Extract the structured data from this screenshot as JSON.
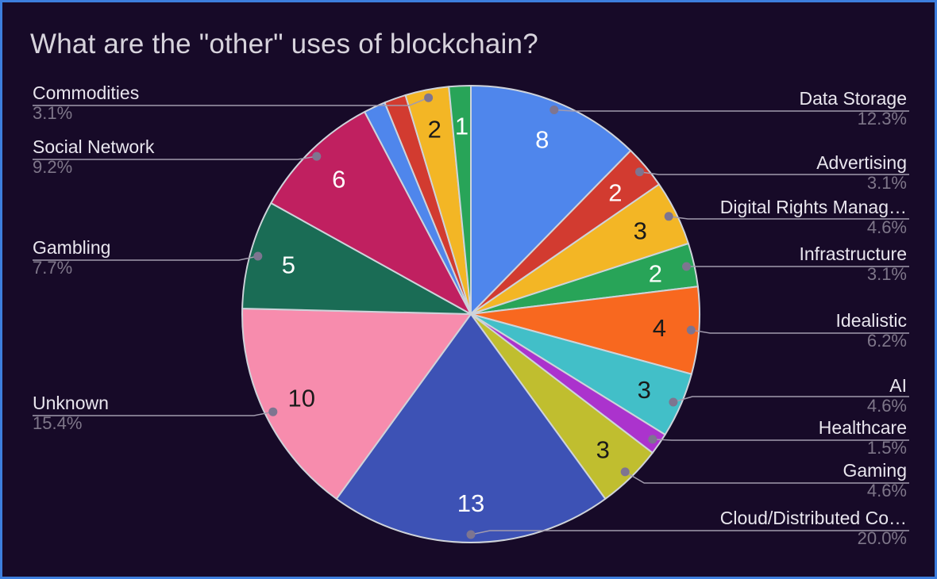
{
  "chart_data": {
    "type": "pie",
    "title": "What are the \"other\" uses of blockchain?",
    "legend_position": "labeled-callouts",
    "start_angle_deg": 0,
    "direction": "clockwise",
    "slices": [
      {
        "label": "Data Storage",
        "value": 8,
        "pct": "12.3%",
        "color": "#4f86ec",
        "value_label": "8",
        "value_label_color": "#ffffff"
      },
      {
        "label": "Advertising",
        "value": 2,
        "pct": "3.1%",
        "color": "#d23b30",
        "value_label": "2",
        "value_label_color": "#ffffff"
      },
      {
        "label": "Digital Rights Manag…",
        "value": 3,
        "pct": "4.6%",
        "color": "#f3b625",
        "value_label": "3",
        "value_label_color": "#1a1a1a"
      },
      {
        "label": "Infrastructure",
        "value": 2,
        "pct": "3.1%",
        "color": "#28a458",
        "value_label": "2",
        "value_label_color": "#ffffff"
      },
      {
        "label": "Idealistic",
        "value": 4,
        "pct": "6.2%",
        "color": "#f8681f",
        "value_label": "4",
        "value_label_color": "#1a1a1a"
      },
      {
        "label": "AI",
        "value": 3,
        "pct": "4.6%",
        "color": "#42bfc8",
        "value_label": "3",
        "value_label_color": "#1a1a1a"
      },
      {
        "label": "Healthcare",
        "value": 1,
        "pct": "1.5%",
        "color": "#ab33cd",
        "value_label": null,
        "value_label_color": null
      },
      {
        "label": "Gaming",
        "value": 3,
        "pct": "4.6%",
        "color": "#c0be2f",
        "value_label": "3",
        "value_label_color": "#1a1a1a"
      },
      {
        "label": "Cloud/Distributed Co…",
        "value": 13,
        "pct": "20.0%",
        "color": "#3d52b5",
        "value_label": "13",
        "value_label_color": "#ffffff"
      },
      {
        "label": "Unknown",
        "value": 10,
        "pct": "15.4%",
        "color": "#f78cad",
        "value_label": "10",
        "value_label_color": "#1a1a1a"
      },
      {
        "label": "Gambling",
        "value": 5,
        "pct": "7.7%",
        "color": "#1a6c55",
        "value_label": "5",
        "value_label_color": "#ffffff"
      },
      {
        "label": "Social Network",
        "value": 6,
        "pct": "9.2%",
        "color": "#c02060",
        "value_label": "6",
        "value_label_color": "#ffffff"
      },
      {
        "label": null,
        "value": 1,
        "pct": null,
        "color": "#4f86ec",
        "value_label": null,
        "value_label_color": null
      },
      {
        "label": null,
        "value": 1,
        "pct": null,
        "color": "#d23b30",
        "value_label": null,
        "value_label_color": null
      },
      {
        "label": "Commodities",
        "value": 2,
        "pct": "3.1%",
        "color": "#f3b625",
        "value_label": "2",
        "value_label_color": "#1a1a1a"
      },
      {
        "label": null,
        "value": 1,
        "pct": null,
        "color": "#28a458",
        "value_label": "1",
        "value_label_color": "#ffffff"
      }
    ],
    "style": {
      "bg": "#170a28",
      "border": "#3d7ede",
      "title_color": "#d7d3dc",
      "label_color": "#e9e6ee",
      "pct_color": "#7e7689",
      "leader_line": "#a29bae",
      "leader_dot": "#7e7590",
      "slice_stroke": "#ced3da"
    }
  }
}
